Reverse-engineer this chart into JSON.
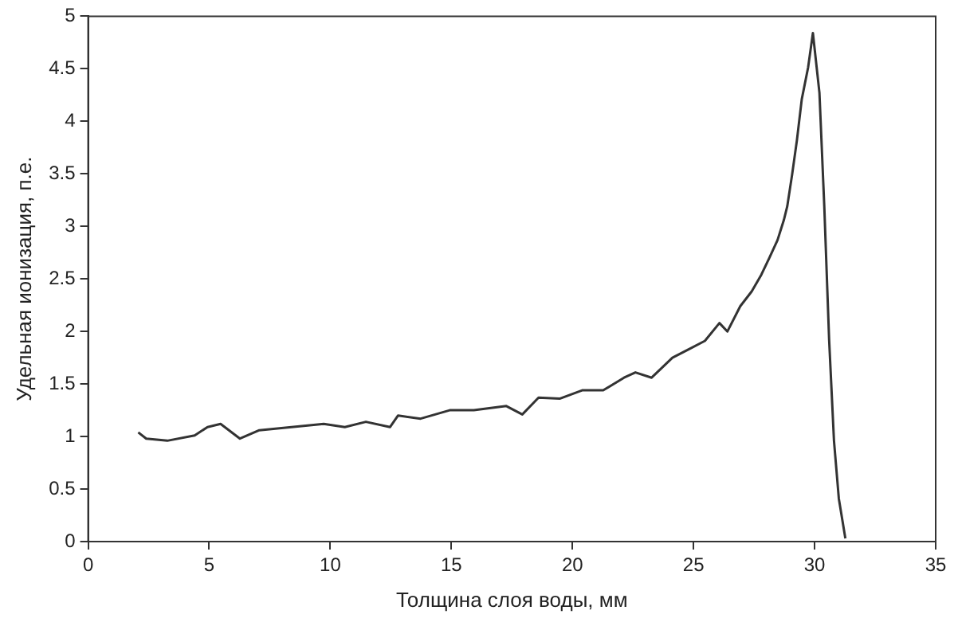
{
  "chart_data": {
    "type": "line",
    "xlabel": "Толщина слоя воды, мм",
    "ylabel": "Удельная ионизация, п.е.",
    "xlim": [
      0,
      35
    ],
    "xticks": [
      0,
      5,
      10,
      15,
      20,
      25,
      30,
      35
    ],
    "ylim": [
      0,
      5
    ],
    "yticks": [
      0,
      0.5,
      1,
      1.5,
      2,
      2.5,
      3,
      3.5,
      4,
      4.5,
      5
    ],
    "grid": false,
    "legend": false,
    "marker": "none",
    "line_style": "solid",
    "series": [
      {
        "color": "#333333",
        "x": [
          2.07,
          2.4,
          3.27,
          4.4,
          4.93,
          5.47,
          6.27,
          7.07,
          8.4,
          9.73,
          10.6,
          11.47,
          12.47,
          12.8,
          13.73,
          14.93,
          15.93,
          17.27,
          17.93,
          18.6,
          19.47,
          20.4,
          21.27,
          22.13,
          22.6,
          23.27,
          24.13,
          24.8,
          25.47,
          26.07,
          26.4,
          26.93,
          27.4,
          27.8,
          28.13,
          28.47,
          28.73,
          28.87,
          29.07,
          29.27,
          29.47,
          29.73,
          29.93,
          30.2,
          30.4,
          30.6,
          30.8,
          31.0,
          31.27
        ],
        "values": [
          1.04,
          0.98,
          0.96,
          1.01,
          1.09,
          1.12,
          0.98,
          1.06,
          1.09,
          1.12,
          1.09,
          1.14,
          1.09,
          1.2,
          1.17,
          1.25,
          1.25,
          1.29,
          1.21,
          1.37,
          1.36,
          1.44,
          1.44,
          1.56,
          1.61,
          1.56,
          1.75,
          1.83,
          1.91,
          2.08,
          2.0,
          2.24,
          2.38,
          2.54,
          2.7,
          2.87,
          3.06,
          3.19,
          3.49,
          3.82,
          4.21,
          4.51,
          4.84,
          4.27,
          3.19,
          1.92,
          0.96,
          0.41,
          0.03
        ]
      }
    ]
  }
}
